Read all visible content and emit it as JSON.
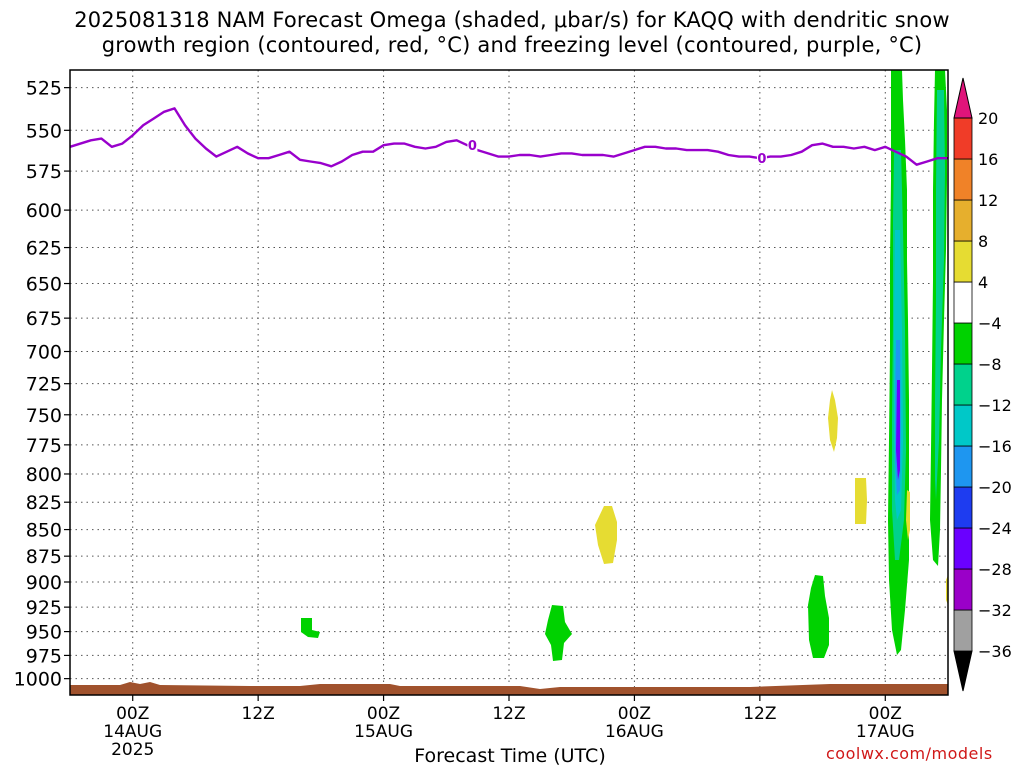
{
  "title": {
    "line1": "2025081318 NAM Forecast Omega (shaded, μbar/s) for KAQQ with dendritic snow",
    "line2": "growth region (contoured, red, °C) and freezing level (contoured, purple, °C)"
  },
  "xlabel": "Forecast Time (UTC)",
  "watermark": "coolwx.com/models",
  "chart_data": {
    "type": "heatmap",
    "title": "2025081318 NAM Forecast Omega (shaded, μbar/s) for KAQQ with dendritic snow growth region (contoured, red, °C) and freezing level (contoured, purple, °C)",
    "xlabel": "Forecast Time (UTC)",
    "x_axis": {
      "unit": "forecast hours from 2025-08-13 18Z",
      "range": [
        0,
        84
      ],
      "tick_hours": [
        6,
        18,
        30,
        42,
        54,
        66,
        78
      ],
      "tick_labels": [
        [
          "00Z",
          "14AUG",
          "2025"
        ],
        [
          "12Z"
        ],
        [
          "00Z",
          "15AUG"
        ],
        [
          "12Z"
        ],
        [
          "00Z",
          "16AUG"
        ],
        [
          "12Z"
        ],
        [
          "00Z",
          "17AUG"
        ]
      ]
    },
    "y_axis": {
      "unit": "hPa",
      "range": [
        1018,
        515
      ],
      "ticks": [
        525,
        550,
        575,
        600,
        625,
        650,
        675,
        700,
        725,
        750,
        775,
        800,
        825,
        850,
        875,
        900,
        925,
        950,
        975,
        1000
      ]
    },
    "grid": true,
    "colorbar": {
      "levels": [
        -36,
        -32,
        -28,
        -24,
        -20,
        -16,
        -12,
        -8,
        -4,
        4,
        8,
        12,
        16,
        20
      ],
      "colors": [
        "#000000",
        "#a0a0a0",
        "#9a00c8",
        "#6a00ff",
        "#1e3cf0",
        "#1e96f0",
        "#00c8c8",
        "#00d28c",
        "#00d200",
        "#ffffff",
        "#e6dc32",
        "#e6af2d",
        "#f08228",
        "#f03c28",
        "#e0147a"
      ]
    },
    "freezing_level": {
      "color": "#9900cc",
      "label": "0",
      "points": [
        [
          0,
          560
        ],
        [
          2,
          556
        ],
        [
          3,
          555
        ],
        [
          4,
          560
        ],
        [
          5,
          558
        ],
        [
          6,
          553
        ],
        [
          7,
          547
        ],
        [
          8,
          543
        ],
        [
          9,
          539
        ],
        [
          10,
          537
        ],
        [
          11,
          547
        ],
        [
          12,
          555
        ],
        [
          13,
          561
        ],
        [
          14,
          566
        ],
        [
          15,
          563
        ],
        [
          16,
          560
        ],
        [
          17,
          564
        ],
        [
          18,
          567
        ],
        [
          19,
          567
        ],
        [
          20,
          565
        ],
        [
          21,
          563
        ],
        [
          22,
          568
        ],
        [
          23,
          569
        ],
        [
          24,
          570
        ],
        [
          25,
          572
        ],
        [
          26,
          569
        ],
        [
          27,
          565
        ],
        [
          28,
          563
        ],
        [
          29,
          563
        ],
        [
          30,
          559
        ],
        [
          31,
          558
        ],
        [
          32,
          558
        ],
        [
          33,
          560
        ],
        [
          34,
          561
        ],
        [
          35,
          560
        ],
        [
          36,
          557
        ],
        [
          37,
          556
        ],
        [
          38,
          559
        ],
        [
          39,
          562
        ],
        [
          40,
          564
        ],
        [
          41,
          566
        ],
        [
          42,
          566
        ],
        [
          43,
          565
        ],
        [
          44,
          565
        ],
        [
          45,
          566
        ],
        [
          46,
          565
        ],
        [
          47,
          564
        ],
        [
          48,
          564
        ],
        [
          49,
          565
        ],
        [
          50,
          565
        ],
        [
          51,
          565
        ],
        [
          52,
          566
        ],
        [
          53,
          564
        ],
        [
          54,
          562
        ],
        [
          55,
          560
        ],
        [
          56,
          560
        ],
        [
          57,
          561
        ],
        [
          58,
          561
        ],
        [
          59,
          562
        ],
        [
          60,
          562
        ],
        [
          61,
          562
        ],
        [
          62,
          563
        ],
        [
          63,
          565
        ],
        [
          64,
          566
        ],
        [
          65,
          566
        ],
        [
          66,
          567
        ],
        [
          67,
          566
        ],
        [
          68,
          566
        ],
        [
          69,
          565
        ],
        [
          70,
          563
        ],
        [
          71,
          559
        ],
        [
          72,
          558
        ],
        [
          73,
          560
        ],
        [
          74,
          560
        ],
        [
          75,
          561
        ],
        [
          76,
          560
        ],
        [
          77,
          562
        ],
        [
          78,
          560
        ],
        [
          79,
          563
        ],
        [
          80,
          566
        ],
        [
          81,
          571
        ],
        [
          82,
          569
        ],
        [
          83,
          567
        ],
        [
          84,
          567
        ]
      ]
    },
    "omega_features": [
      {
        "center_hour": 24.2,
        "center_hpa": 953,
        "value_range": [
          -8,
          -4
        ]
      },
      {
        "center_hour": 44.8,
        "center_hpa": 955,
        "value_range": [
          -8,
          -4
        ]
      },
      {
        "center_hour": 49.8,
        "center_hpa": 858,
        "value_range": [
          4,
          8
        ]
      },
      {
        "center_hour": 69.8,
        "center_hpa": 950,
        "value_range": [
          -8,
          -4
        ]
      },
      {
        "center_hour": 72.1,
        "center_hpa": 765,
        "value_range": [
          4,
          8
        ]
      },
      {
        "center_hour": 74.2,
        "center_hpa": 840,
        "value_range": [
          4,
          8
        ]
      },
      {
        "center_hour": 78.8,
        "center_hpa": 750,
        "value_range": [
          -28,
          -4
        ]
      },
      {
        "center_hour": 82.3,
        "center_hpa": 720,
        "value_range": [
          -16,
          -4
        ]
      }
    ],
    "surface_terrain": {
      "color": "#a0522d"
    }
  }
}
